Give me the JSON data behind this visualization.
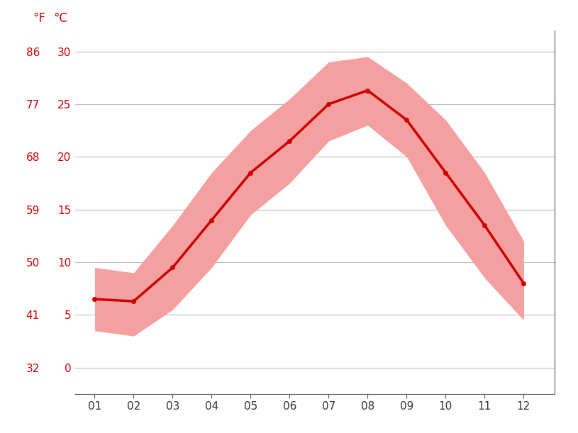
{
  "months": [
    1,
    2,
    3,
    4,
    5,
    6,
    7,
    8,
    9,
    10,
    11,
    12
  ],
  "month_labels": [
    "01",
    "02",
    "03",
    "04",
    "05",
    "06",
    "07",
    "08",
    "09",
    "10",
    "11",
    "12"
  ],
  "temp_mean": [
    6.5,
    6.3,
    9.5,
    14.0,
    18.5,
    21.5,
    25.0,
    26.3,
    23.5,
    18.5,
    13.5,
    8.0
  ],
  "temp_max": [
    9.5,
    9.0,
    13.5,
    18.5,
    22.5,
    25.5,
    29.0,
    29.5,
    27.0,
    23.5,
    18.5,
    12.0
  ],
  "temp_min": [
    3.5,
    3.0,
    5.5,
    9.5,
    14.5,
    17.5,
    21.5,
    23.0,
    20.0,
    13.5,
    8.5,
    4.5
  ],
  "label_F": "°F",
  "label_C": "°C",
  "yticks_c": [
    0,
    5,
    10,
    15,
    20,
    25,
    30
  ],
  "yticks_f": [
    32,
    41,
    50,
    59,
    68,
    77,
    86
  ],
  "ylim_c": [
    -2.5,
    32
  ],
  "xlim": [
    0.5,
    12.8
  ],
  "line_color": "#cc0000",
  "fill_color": "#f5a0a0",
  "grid_color": "#bbbbbb",
  "tick_color": "#cc0000",
  "background_color": "#ffffff",
  "line_width": 2.5,
  "marker": "o",
  "marker_size": 4,
  "tick_fontsize": 11,
  "label_fontsize": 12
}
